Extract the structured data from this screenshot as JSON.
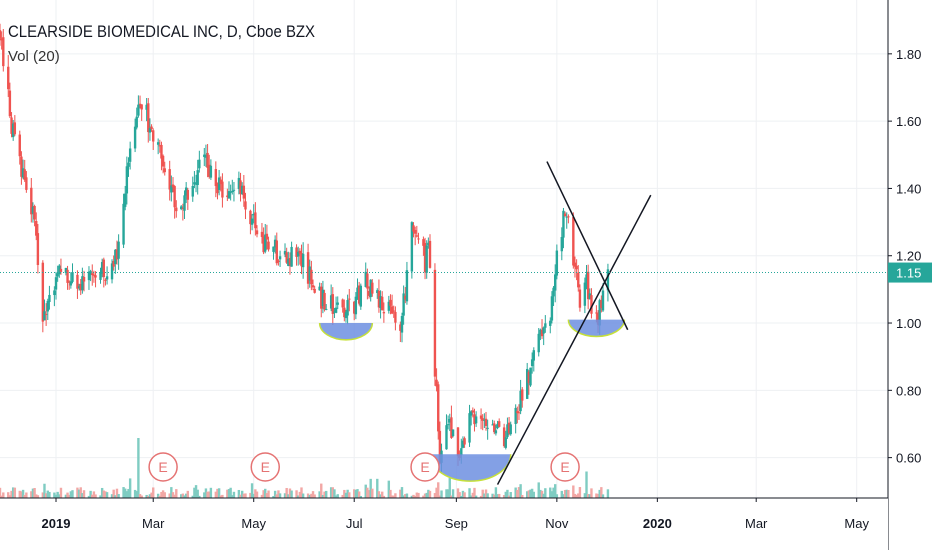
{
  "header": {
    "title": "CLEARSIDE BIOMEDICAL INC, D, Cboe BZX",
    "volume_indicator": "Vol (20)"
  },
  "colors": {
    "up": "#26a69a",
    "down": "#ef5350",
    "up_volume": "#7fccc2",
    "down_volume": "#f2a7a5",
    "bowl_fill": "#6d8fe0",
    "bowl_rim": "#c6e03a",
    "trendline": "#131722",
    "last_price": "#26a69a",
    "earnings_marker": "#e57373",
    "grid": "#eef0f3",
    "axis_text": "#131722"
  },
  "price_axis": {
    "ticks": [
      0.6,
      0.8,
      1.0,
      1.2,
      1.4,
      1.6,
      1.8
    ],
    "tick_labels": [
      "0.60",
      "0.80",
      "1.00",
      "1.20",
      "1.40",
      "1.60",
      "1.80"
    ],
    "last_price_label": "1.15"
  },
  "time_axis": {
    "labels": [
      {
        "text": "2019",
        "date": "2019-01-01",
        "bold": true
      },
      {
        "text": "Mar",
        "date": "2019-03-01",
        "bold": false
      },
      {
        "text": "May",
        "date": "2019-05-01",
        "bold": false
      },
      {
        "text": "Jul",
        "date": "2019-07-01",
        "bold": false
      },
      {
        "text": "Sep",
        "date": "2019-09-01",
        "bold": false
      },
      {
        "text": "Nov",
        "date": "2019-11-01",
        "bold": false
      },
      {
        "text": "2020",
        "date": "2020-01-01",
        "bold": true
      },
      {
        "text": "Mar",
        "date": "2020-03-01",
        "bold": false
      },
      {
        "text": "May",
        "date": "2020-05-01",
        "bold": false
      }
    ]
  },
  "earnings_markers": [
    {
      "label": "E",
      "date": "2019-03-07"
    },
    {
      "label": "E",
      "date": "2019-05-08"
    },
    {
      "label": "E",
      "date": "2019-08-13"
    },
    {
      "label": "E",
      "date": "2019-11-06"
    }
  ],
  "chart_data": {
    "type": "candlestick",
    "title": "CLEARSIDE BIOMEDICAL INC, D, Cboe BZX",
    "x_range": [
      "2018-11-28",
      "2020-05-20"
    ],
    "ylim": [
      0.48,
      1.96
    ],
    "grid": true,
    "last_price": 1.15,
    "price_path": [
      [
        "2018-11-28",
        1.88
      ],
      [
        "2018-12-04",
        1.62
      ],
      [
        "2018-12-10",
        1.48
      ],
      [
        "2018-12-14",
        1.38
      ],
      [
        "2018-12-19",
        1.3
      ],
      [
        "2018-12-24",
        1.0
      ],
      [
        "2018-12-28",
        1.05
      ],
      [
        "2019-01-04",
        1.18
      ],
      [
        "2019-01-10",
        1.14
      ],
      [
        "2019-01-18",
        1.1
      ],
      [
        "2019-01-25",
        1.15
      ],
      [
        "2019-02-01",
        1.15
      ],
      [
        "2019-02-08",
        1.22
      ],
      [
        "2019-02-15",
        1.52
      ],
      [
        "2019-02-20",
        1.68
      ],
      [
        "2019-02-25",
        1.62
      ],
      [
        "2019-03-01",
        1.55
      ],
      [
        "2019-03-06",
        1.48
      ],
      [
        "2019-03-12",
        1.4
      ],
      [
        "2019-03-18",
        1.33
      ],
      [
        "2019-03-25",
        1.42
      ],
      [
        "2019-04-01",
        1.5
      ],
      [
        "2019-04-08",
        1.42
      ],
      [
        "2019-04-15",
        1.38
      ],
      [
        "2019-04-22",
        1.42
      ],
      [
        "2019-04-29",
        1.32
      ],
      [
        "2019-05-06",
        1.24
      ],
      [
        "2019-05-13",
        1.22
      ],
      [
        "2019-05-20",
        1.18
      ],
      [
        "2019-05-27",
        1.2
      ],
      [
        "2019-06-03",
        1.15
      ],
      [
        "2019-06-10",
        1.08
      ],
      [
        "2019-06-17",
        1.05
      ],
      [
        "2019-06-24",
        1.02
      ],
      [
        "2019-07-01",
        1.06
      ],
      [
        "2019-07-08",
        1.12
      ],
      [
        "2019-07-15",
        1.08
      ],
      [
        "2019-07-22",
        1.05
      ],
      [
        "2019-07-29",
        1.0
      ],
      [
        "2019-08-01",
        1.1
      ],
      [
        "2019-08-05",
        1.32
      ],
      [
        "2019-08-09",
        1.25
      ],
      [
        "2019-08-13",
        1.18
      ],
      [
        "2019-08-15",
        1.22
      ],
      [
        "2019-08-22",
        0.6
      ],
      [
        "2019-08-27",
        0.7
      ],
      [
        "2019-09-03",
        0.62
      ],
      [
        "2019-09-10",
        0.72
      ],
      [
        "2019-09-17",
        0.7
      ],
      [
        "2019-09-24",
        0.67
      ],
      [
        "2019-10-01",
        0.66
      ],
      [
        "2019-10-08",
        0.75
      ],
      [
        "2019-10-15",
        0.85
      ],
      [
        "2019-10-22",
        0.95
      ],
      [
        "2019-10-29",
        1.05
      ],
      [
        "2019-11-01",
        1.2
      ],
      [
        "2019-11-05",
        1.3
      ],
      [
        "2019-11-08",
        1.28
      ],
      [
        "2019-11-12",
        1.15
      ],
      [
        "2019-11-15",
        1.08
      ],
      [
        "2019-11-19",
        1.12
      ],
      [
        "2019-11-22",
        1.05
      ],
      [
        "2019-11-26",
        1.02
      ],
      [
        "2019-12-02",
        1.15
      ]
    ],
    "volume": {
      "max_date": "2019-02-20",
      "scale": "relative"
    },
    "annotations": [
      {
        "type": "rounded_bottom",
        "from": "2019-06-10",
        "to": "2019-07-12",
        "level": 1.0,
        "depth": 0.05
      },
      {
        "type": "rounded_bottom",
        "from": "2019-08-16",
        "to": "2019-10-04",
        "level": 0.61,
        "depth": 0.08
      },
      {
        "type": "rounded_bottom",
        "from": "2019-11-08",
        "to": "2019-12-12",
        "level": 1.01,
        "depth": 0.05
      },
      {
        "type": "trendline",
        "from": [
          "2019-09-26",
          0.52
        ],
        "to": [
          "2019-12-28",
          1.38
        ]
      },
      {
        "type": "trendline",
        "from": [
          "2019-10-26",
          1.48
        ],
        "to": [
          "2019-12-14",
          0.98
        ]
      }
    ]
  }
}
